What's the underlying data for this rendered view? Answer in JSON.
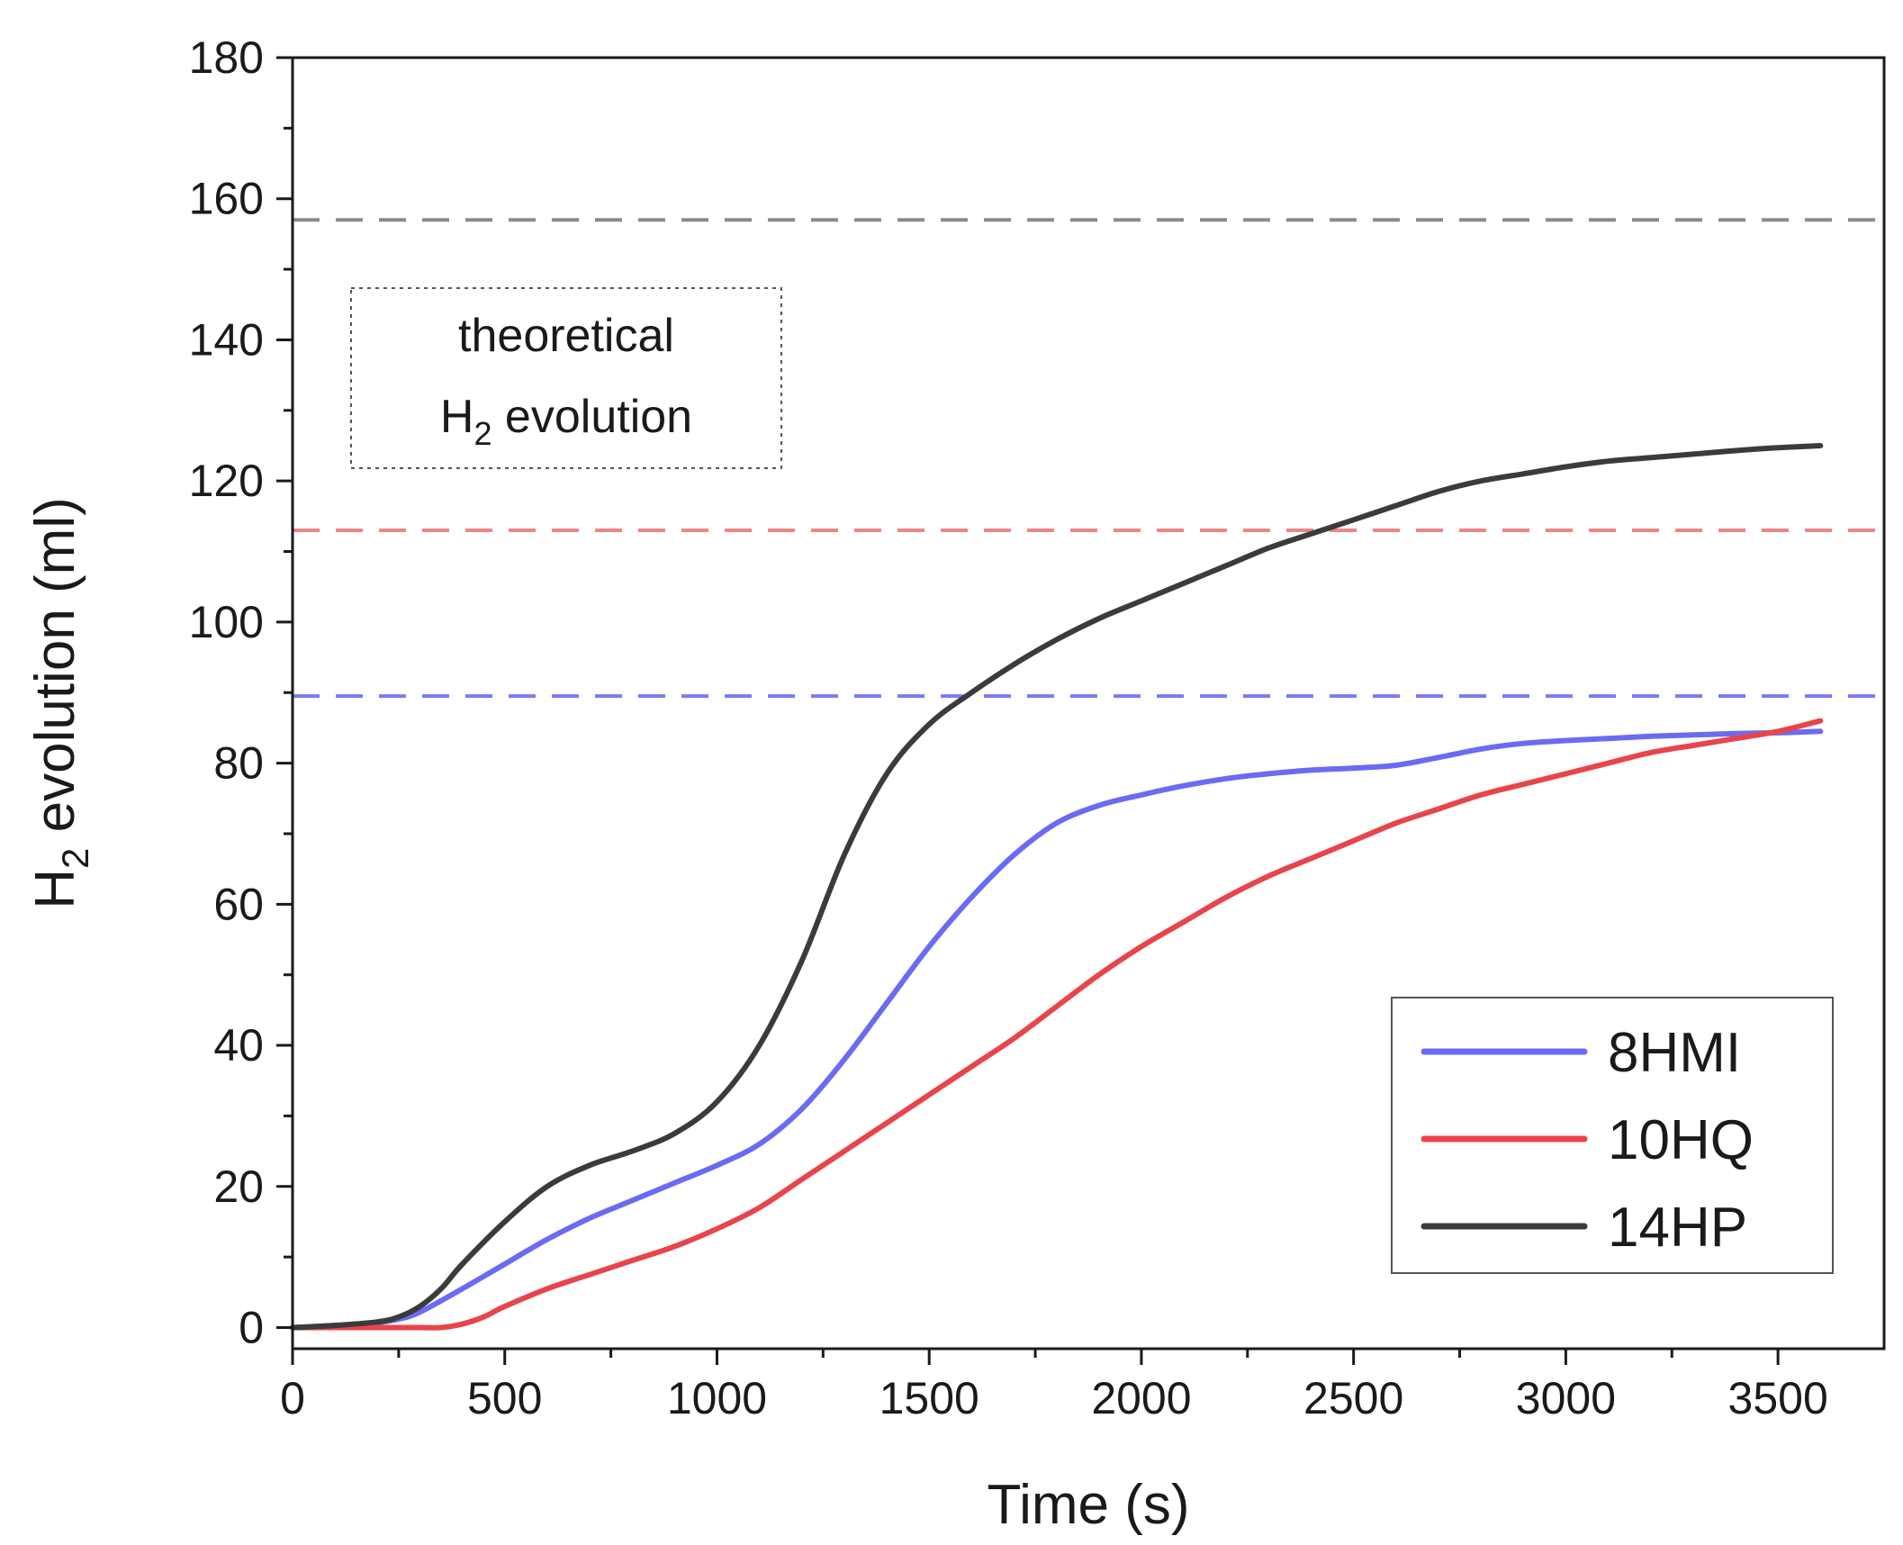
{
  "chart_data": {
    "type": "line",
    "title": "",
    "xlabel": "Time (s)",
    "ylabel_main": "H",
    "ylabel_sub": "2",
    "ylabel_rest": " evolution (ml)",
    "xlim": [
      0,
      3750
    ],
    "ylim": [
      -3,
      180
    ],
    "xticks": [
      0,
      500,
      1000,
      1500,
      2000,
      2500,
      3000,
      3500
    ],
    "xtick_labels": [
      "0",
      "500",
      "1000",
      "1500",
      "2000",
      "2500",
      "3000",
      "3500"
    ],
    "yticks": [
      0,
      20,
      40,
      60,
      80,
      100,
      120,
      140,
      160,
      180
    ],
    "ytick_labels": [
      "0",
      "20",
      "40",
      "60",
      "80",
      "100",
      "120",
      "140",
      "160",
      "180"
    ],
    "grid": false,
    "legend_position": "bottom-right",
    "series": [
      {
        "name": "8HMI",
        "color": "#6b6bf2",
        "x": [
          0,
          100,
          200,
          250,
          300,
          400,
          500,
          600,
          700,
          800,
          900,
          1000,
          1100,
          1200,
          1300,
          1400,
          1500,
          1600,
          1700,
          1800,
          1900,
          2000,
          2100,
          2200,
          2300,
          2400,
          2500,
          2600,
          2700,
          2800,
          2900,
          3000,
          3100,
          3200,
          3300,
          3400,
          3500,
          3600
        ],
        "y": [
          0,
          0.3,
          0.7,
          1.2,
          2.2,
          5.5,
          9,
          12.5,
          15.5,
          18,
          20.5,
          23,
          26,
          31,
          38,
          46,
          54,
          61,
          67,
          71.5,
          74,
          75.5,
          76.8,
          77.8,
          78.5,
          79,
          79.3,
          79.7,
          80.8,
          82,
          82.8,
          83.2,
          83.5,
          83.8,
          84,
          84.2,
          84.3,
          84.5
        ]
      },
      {
        "name": "10HQ",
        "color": "#e8454b",
        "x": [
          0,
          100,
          200,
          300,
          350,
          400,
          450,
          500,
          600,
          700,
          800,
          900,
          1000,
          1100,
          1200,
          1300,
          1400,
          1500,
          1600,
          1700,
          1800,
          1900,
          2000,
          2100,
          2200,
          2300,
          2400,
          2500,
          2600,
          2700,
          2800,
          2900,
          3000,
          3100,
          3200,
          3300,
          3400,
          3500,
          3600
        ],
        "y": [
          0,
          0,
          0,
          0,
          0,
          0.5,
          1.5,
          3,
          5.5,
          7.5,
          9.5,
          11.5,
          14,
          17,
          21,
          25,
          29,
          33,
          37,
          41,
          45.5,
          50,
          54,
          57.5,
          61,
          64,
          66.5,
          69,
          71.5,
          73.5,
          75.5,
          77,
          78.5,
          80,
          81.5,
          82.5,
          83.5,
          84.5,
          86
        ]
      },
      {
        "name": "14HP",
        "color": "#3b3b3b",
        "x": [
          0,
          100,
          200,
          250,
          300,
          350,
          400,
          500,
          600,
          700,
          800,
          900,
          1000,
          1100,
          1200,
          1300,
          1400,
          1500,
          1600,
          1700,
          1800,
          1900,
          2000,
          2100,
          2200,
          2300,
          2400,
          2500,
          2600,
          2700,
          2800,
          2900,
          3000,
          3100,
          3200,
          3300,
          3400,
          3500,
          3600
        ],
        "y": [
          0,
          0.3,
          0.8,
          1.5,
          3,
          5.5,
          9,
          15,
          20,
          23,
          25,
          27.5,
          32,
          40,
          52,
          67,
          78.5,
          85.5,
          90,
          94,
          97.5,
          100.5,
          103,
          105.5,
          108,
          110.5,
          112.5,
          114.5,
          116.5,
          118.5,
          120,
          121,
          122,
          122.8,
          123.3,
          123.8,
          124.3,
          124.7,
          125
        ]
      }
    ],
    "reference_lines": [
      {
        "name": "14HP theoretical",
        "y": 157,
        "color": "#8a8a8a"
      },
      {
        "name": "10HQ theoretical",
        "y": 113,
        "color": "#f08585"
      },
      {
        "name": "8HMI theoretical",
        "y": 89.5,
        "color": "#7b7bf0"
      }
    ],
    "annotation": {
      "line1": "theoretical",
      "line2_main": "H",
      "line2_sub": "2",
      "line2_rest": " evolution"
    }
  }
}
